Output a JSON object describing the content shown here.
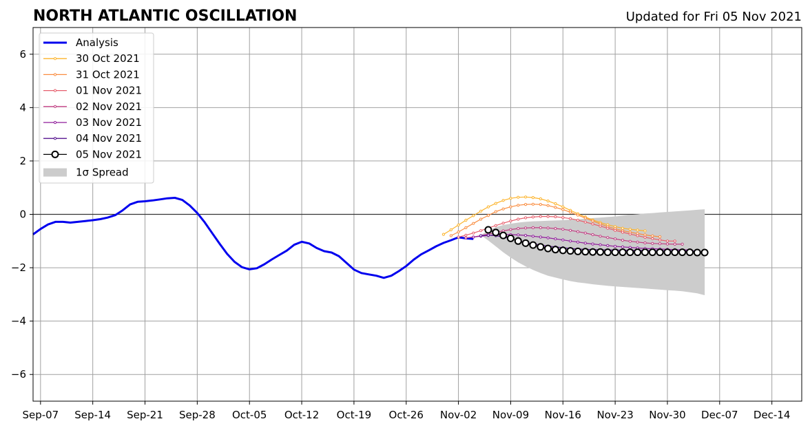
{
  "chart_data": {
    "type": "line",
    "title": "NORTH ATLANTIC OSCILLATION",
    "subtitle": "Updated for Fri 05 Nov 2021",
    "xlabel": "",
    "ylabel": "",
    "xlim": [
      "2021-09-06",
      "2021-12-18"
    ],
    "ylim": [
      -7,
      7
    ],
    "x_ticks": [
      "Sep-07",
      "Sep-14",
      "Sep-21",
      "Sep-28",
      "Oct-05",
      "Oct-12",
      "Oct-19",
      "Oct-26",
      "Nov-02",
      "Nov-09",
      "Nov-16",
      "Nov-23",
      "Nov-30",
      "Dec-07",
      "Dec-14"
    ],
    "x_tick_dates": [
      "2021-09-07",
      "2021-09-14",
      "2021-09-21",
      "2021-09-28",
      "2021-10-05",
      "2021-10-12",
      "2021-10-19",
      "2021-10-26",
      "2021-11-02",
      "2021-11-09",
      "2021-11-16",
      "2021-11-23",
      "2021-11-30",
      "2021-12-07",
      "2021-12-14"
    ],
    "y_ticks": [
      -6,
      -4,
      -2,
      0,
      2,
      4,
      6
    ],
    "y_tick_labels": [
      "−6",
      "−4",
      "−2",
      "0",
      "2",
      "4",
      "6"
    ],
    "grid": true,
    "legend_position": "top-left",
    "analysis": {
      "name": "Analysis",
      "color": "#0000ee",
      "start": "2021-09-06",
      "values": [
        -0.75,
        -0.55,
        -0.38,
        -0.28,
        -0.28,
        -0.31,
        -0.28,
        -0.25,
        -0.22,
        -0.18,
        -0.12,
        -0.03,
        0.15,
        0.37,
        0.47,
        0.49,
        0.52,
        0.56,
        0.6,
        0.62,
        0.54,
        0.33,
        0.05,
        -0.3,
        -0.7,
        -1.1,
        -1.48,
        -1.78,
        -1.98,
        -2.06,
        -2.02,
        -1.87,
        -1.69,
        -1.52,
        -1.36,
        -1.14,
        -1.03,
        -1.09,
        -1.26,
        -1.38,
        -1.43,
        -1.57,
        -1.82,
        -2.07,
        -2.2,
        -2.25,
        -2.3,
        -2.38,
        -2.3,
        -2.13,
        -1.94,
        -1.7,
        -1.5,
        -1.35,
        -1.2,
        -1.07,
        -0.97,
        -0.86,
        -0.9,
        -0.92
      ]
    },
    "series": [
      {
        "name": "30 Oct 2021",
        "color": "#fcb32a",
        "start": "2021-10-31",
        "values": [
          -0.75,
          -0.58,
          -0.4,
          -0.22,
          -0.05,
          0.12,
          0.28,
          0.41,
          0.52,
          0.6,
          0.64,
          0.65,
          0.63,
          0.58,
          0.5,
          0.4,
          0.28,
          0.15,
          0.02,
          -0.1,
          -0.21,
          -0.31,
          -0.39,
          -0.46,
          -0.52,
          -0.56,
          -0.59,
          -0.62
        ]
      },
      {
        "name": "31 Oct 2021",
        "color": "#f98c3f",
        "start": "2021-11-01",
        "values": [
          -0.8,
          -0.66,
          -0.5,
          -0.34,
          -0.18,
          -0.04,
          0.1,
          0.2,
          0.28,
          0.34,
          0.37,
          0.38,
          0.37,
          0.33,
          0.26,
          0.18,
          0.08,
          -0.03,
          -0.14,
          -0.25,
          -0.36,
          -0.46,
          -0.54,
          -0.61,
          -0.67,
          -0.72,
          -0.77,
          -0.81,
          -0.84
        ]
      },
      {
        "name": "01 Nov 2021",
        "color": "#e65d6b",
        "start": "2021-11-02",
        "values": [
          -0.85,
          -0.78,
          -0.7,
          -0.61,
          -0.51,
          -0.42,
          -0.33,
          -0.25,
          -0.18,
          -0.13,
          -0.1,
          -0.08,
          -0.08,
          -0.09,
          -0.12,
          -0.16,
          -0.22,
          -0.29,
          -0.36,
          -0.44,
          -0.52,
          -0.6,
          -0.67,
          -0.74,
          -0.8,
          -0.86,
          -0.91,
          -0.96,
          -1.0,
          -1.0
        ]
      },
      {
        "name": "02 Nov 2021",
        "color": "#c13d82",
        "start": "2021-11-03",
        "values": [
          -0.88,
          -0.85,
          -0.8,
          -0.74,
          -0.68,
          -0.62,
          -0.57,
          -0.53,
          -0.51,
          -0.5,
          -0.5,
          -0.51,
          -0.53,
          -0.56,
          -0.6,
          -0.65,
          -0.7,
          -0.76,
          -0.82,
          -0.87,
          -0.92,
          -0.97,
          -1.01,
          -1.04,
          -1.07,
          -1.09,
          -1.1,
          -1.11,
          -1.12,
          -1.12
        ]
      },
      {
        "name": "03 Nov 2021",
        "color": "#8e1b9a",
        "start": "2021-11-04",
        "values": [
          -0.85,
          -0.82,
          -0.79,
          -0.77,
          -0.76,
          -0.76,
          -0.77,
          -0.79,
          -0.82,
          -0.85,
          -0.88,
          -0.92,
          -0.96,
          -1.0,
          -1.04,
          -1.08,
          -1.11,
          -1.14,
          -1.17,
          -1.2,
          -1.22,
          -1.24,
          -1.26,
          -1.28,
          -1.29,
          -1.3,
          -1.31,
          -1.32,
          -1.33,
          -1.33
        ]
      },
      {
        "name": "04 Nov 2021",
        "color": "#55128f",
        "start": "2021-11-05",
        "values": [
          -0.8,
          -0.78,
          -0.8,
          -0.85,
          -0.92,
          -0.99,
          -1.05,
          -1.1,
          -1.15,
          -1.19,
          -1.22,
          -1.25,
          -1.28,
          -1.3,
          -1.31,
          -1.32,
          -1.33,
          -1.33,
          -1.34,
          -1.34,
          -1.35,
          -1.35,
          -1.35,
          -1.36,
          -1.36,
          -1.36,
          -1.37,
          -1.37,
          -1.37,
          -1.37
        ]
      },
      {
        "name": "05 Nov 2021",
        "color": "#000000",
        "start": "2021-11-06",
        "values": [
          -0.58,
          -0.68,
          -0.79,
          -0.9,
          -1.0,
          -1.08,
          -1.15,
          -1.22,
          -1.28,
          -1.32,
          -1.35,
          -1.37,
          -1.39,
          -1.4,
          -1.41,
          -1.41,
          -1.42,
          -1.42,
          -1.42,
          -1.42,
          -1.42,
          -1.42,
          -1.42,
          -1.42,
          -1.42,
          -1.42,
          -1.42,
          -1.42,
          -1.43,
          -1.43
        ]
      }
    ],
    "spread": {
      "name": "1σ Spread",
      "color": "#cccccc",
      "start": "2021-11-05",
      "lower": [
        -0.78,
        -0.98,
        -1.2,
        -1.42,
        -1.62,
        -1.8,
        -1.95,
        -2.08,
        -2.2,
        -2.3,
        -2.37,
        -2.44,
        -2.5,
        -2.55,
        -2.58,
        -2.62,
        -2.65,
        -2.68,
        -2.7,
        -2.72,
        -2.74,
        -2.76,
        -2.78,
        -2.8,
        -2.82,
        -2.84,
        -2.86,
        -2.88,
        -2.92,
        -2.96,
        -3.03
      ],
      "upper": [
        -0.78,
        -0.6,
        -0.48,
        -0.4,
        -0.35,
        -0.31,
        -0.28,
        -0.26,
        -0.25,
        -0.24,
        -0.23,
        -0.22,
        -0.2,
        -0.18,
        -0.16,
        -0.14,
        -0.12,
        -0.1,
        -0.08,
        -0.05,
        -0.02,
        0.0,
        0.03,
        0.05,
        0.07,
        0.09,
        0.11,
        0.13,
        0.15,
        0.17,
        0.19
      ]
    }
  }
}
